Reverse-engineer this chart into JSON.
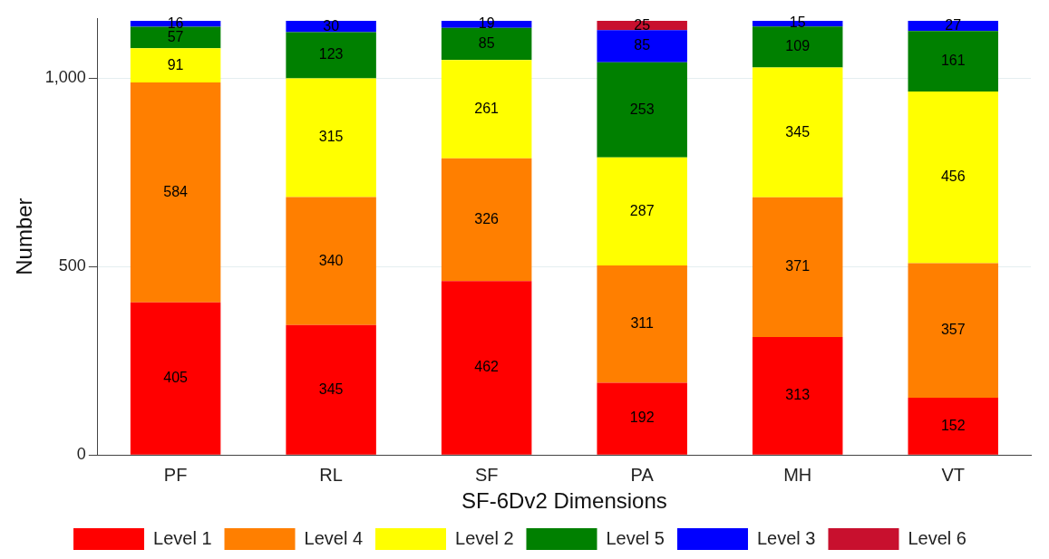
{
  "chart_data": {
    "type": "bar",
    "stacked": true,
    "xlabel": "SF-6Dv2 Dimensions",
    "ylabel": "Number",
    "categories": [
      "PF",
      "RL",
      "SF",
      "PA",
      "MH",
      "VT"
    ],
    "series": [
      {
        "name": "Level 1",
        "color": "#ff0000",
        "values": [
          405,
          345,
          462,
          192,
          313,
          152
        ]
      },
      {
        "name": "Level 4",
        "color": "#ff7f00",
        "values": [
          584,
          340,
          326,
          311,
          371,
          357
        ]
      },
      {
        "name": "Level 2",
        "color": "#ffff00",
        "values": [
          91,
          315,
          261,
          287,
          345,
          456
        ]
      },
      {
        "name": "Level 5",
        "color": "#008000",
        "values": [
          57,
          123,
          85,
          253,
          109,
          161
        ]
      },
      {
        "name": "Level 3",
        "color": "#0000ff",
        "values": [
          16,
          30,
          19,
          85,
          15,
          27
        ]
      },
      {
        "name": "Level 6",
        "color": "#c8102e",
        "values": [
          null,
          null,
          null,
          25,
          null,
          null
        ]
      }
    ],
    "ylim": [
      0,
      1160
    ],
    "yticks": [
      0,
      500,
      {
        "value": 1000,
        "label": "1,000"
      }
    ],
    "grid": "y",
    "legend": "bottom",
    "data_labels": true
  }
}
